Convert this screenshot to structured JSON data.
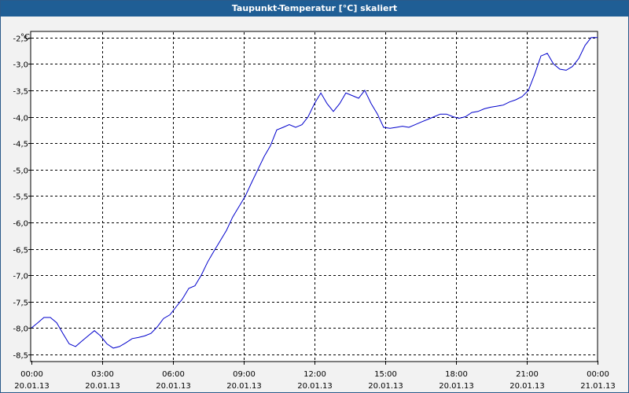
{
  "window": {
    "title": "Taupunkt-Temperatur [°C] skaliert"
  },
  "chart_data": {
    "type": "line",
    "title": "Taupunkt-Temperatur [°C] skaliert",
    "ylabel": "°C",
    "xlabel": "",
    "ylim": [
      -8.62,
      -2.4
    ],
    "xlim": [
      0,
      24
    ],
    "grid": true,
    "legend": "none",
    "line_color": "#0000cc",
    "y_ticks": [
      {
        "value": -2.5,
        "label": "-2,5"
      },
      {
        "value": -3.0,
        "label": "-3,0"
      },
      {
        "value": -3.5,
        "label": "-3,5"
      },
      {
        "value": -4.0,
        "label": "-4,0"
      },
      {
        "value": -4.5,
        "label": "-4,5"
      },
      {
        "value": -5.0,
        "label": "-5,0"
      },
      {
        "value": -5.5,
        "label": "-5,5"
      },
      {
        "value": -6.0,
        "label": "-6,0"
      },
      {
        "value": -6.5,
        "label": "-6,5"
      },
      {
        "value": -7.0,
        "label": "-7,0"
      },
      {
        "value": -7.5,
        "label": "-7,5"
      },
      {
        "value": -8.0,
        "label": "-8,0"
      },
      {
        "value": -8.5,
        "label": "-8,5"
      }
    ],
    "x_ticks": [
      {
        "value": 0,
        "time": "00:00",
        "date": "20.01.13"
      },
      {
        "value": 3,
        "time": "03:00",
        "date": "20.01.13"
      },
      {
        "value": 6,
        "time": "06:00",
        "date": "20.01.13"
      },
      {
        "value": 9,
        "time": "09:00",
        "date": "20.01.13"
      },
      {
        "value": 12,
        "time": "12:00",
        "date": "20.01.13"
      },
      {
        "value": 15,
        "time": "15:00",
        "date": "20.01.13"
      },
      {
        "value": 18,
        "time": "18:00",
        "date": "20.01.13"
      },
      {
        "value": 21,
        "time": "21:00",
        "date": "20.01.13"
      },
      {
        "value": 24,
        "time": "00:00",
        "date": "21.01.13"
      }
    ],
    "series": [
      {
        "x": [
          0.0,
          0.27,
          0.53,
          0.8,
          1.07,
          1.33,
          1.6,
          1.87,
          2.13,
          2.4,
          2.67,
          2.93,
          3.2,
          3.47,
          3.73,
          4.0,
          4.27,
          4.53,
          4.8,
          5.07,
          5.33,
          5.6,
          5.87,
          6.13,
          6.4,
          6.67,
          6.93,
          7.2,
          7.47,
          7.73,
          8.0,
          8.27,
          8.53,
          8.8,
          9.07,
          9.33,
          9.6,
          9.87,
          10.13,
          10.4,
          10.67,
          10.93,
          11.2,
          11.47,
          11.73,
          12.0,
          12.27,
          12.53,
          12.8,
          13.07,
          13.33,
          13.6,
          13.87,
          14.13,
          14.4,
          14.67,
          14.93,
          15.2,
          15.47,
          15.73,
          16.0,
          16.27,
          16.53,
          16.8,
          17.07,
          17.33,
          17.6,
          17.87,
          18.13,
          18.4,
          18.67,
          18.93,
          19.2,
          19.47,
          19.73,
          20.0,
          20.27,
          20.53,
          20.8,
          21.07,
          21.33,
          21.6,
          21.87,
          22.13,
          22.4,
          22.67,
          22.93,
          23.2,
          23.47,
          23.73,
          24.0
        ],
        "y": [
          -8.0,
          -7.9,
          -7.8,
          -7.8,
          -7.9,
          -8.1,
          -8.3,
          -8.35,
          -8.25,
          -8.15,
          -8.05,
          -8.15,
          -8.3,
          -8.38,
          -8.35,
          -8.28,
          -8.2,
          -8.18,
          -8.15,
          -8.1,
          -7.98,
          -7.82,
          -7.75,
          -7.6,
          -7.45,
          -7.25,
          -7.2,
          -7.0,
          -6.75,
          -6.55,
          -6.35,
          -6.15,
          -5.9,
          -5.7,
          -5.5,
          -5.25,
          -5.0,
          -4.75,
          -4.55,
          -4.25,
          -4.2,
          -4.15,
          -4.2,
          -4.15,
          -4.0,
          -3.75,
          -3.55,
          -3.75,
          -3.9,
          -3.75,
          -3.55,
          -3.6,
          -3.65,
          -3.5,
          -3.75,
          -3.95,
          -4.2,
          -4.22,
          -4.2,
          -4.18,
          -4.2,
          -4.15,
          -4.1,
          -4.05,
          -4.0,
          -3.95,
          -3.95,
          -4.0,
          -4.03,
          -4.0,
          -3.92,
          -3.9,
          -3.85,
          -3.82,
          -3.8,
          -3.78,
          -3.72,
          -3.68,
          -3.62,
          -3.5,
          -3.2,
          -2.85,
          -2.8,
          -3.0,
          -3.1,
          -3.12,
          -3.05,
          -2.9,
          -2.65,
          -2.5,
          -2.5
        ]
      }
    ]
  }
}
